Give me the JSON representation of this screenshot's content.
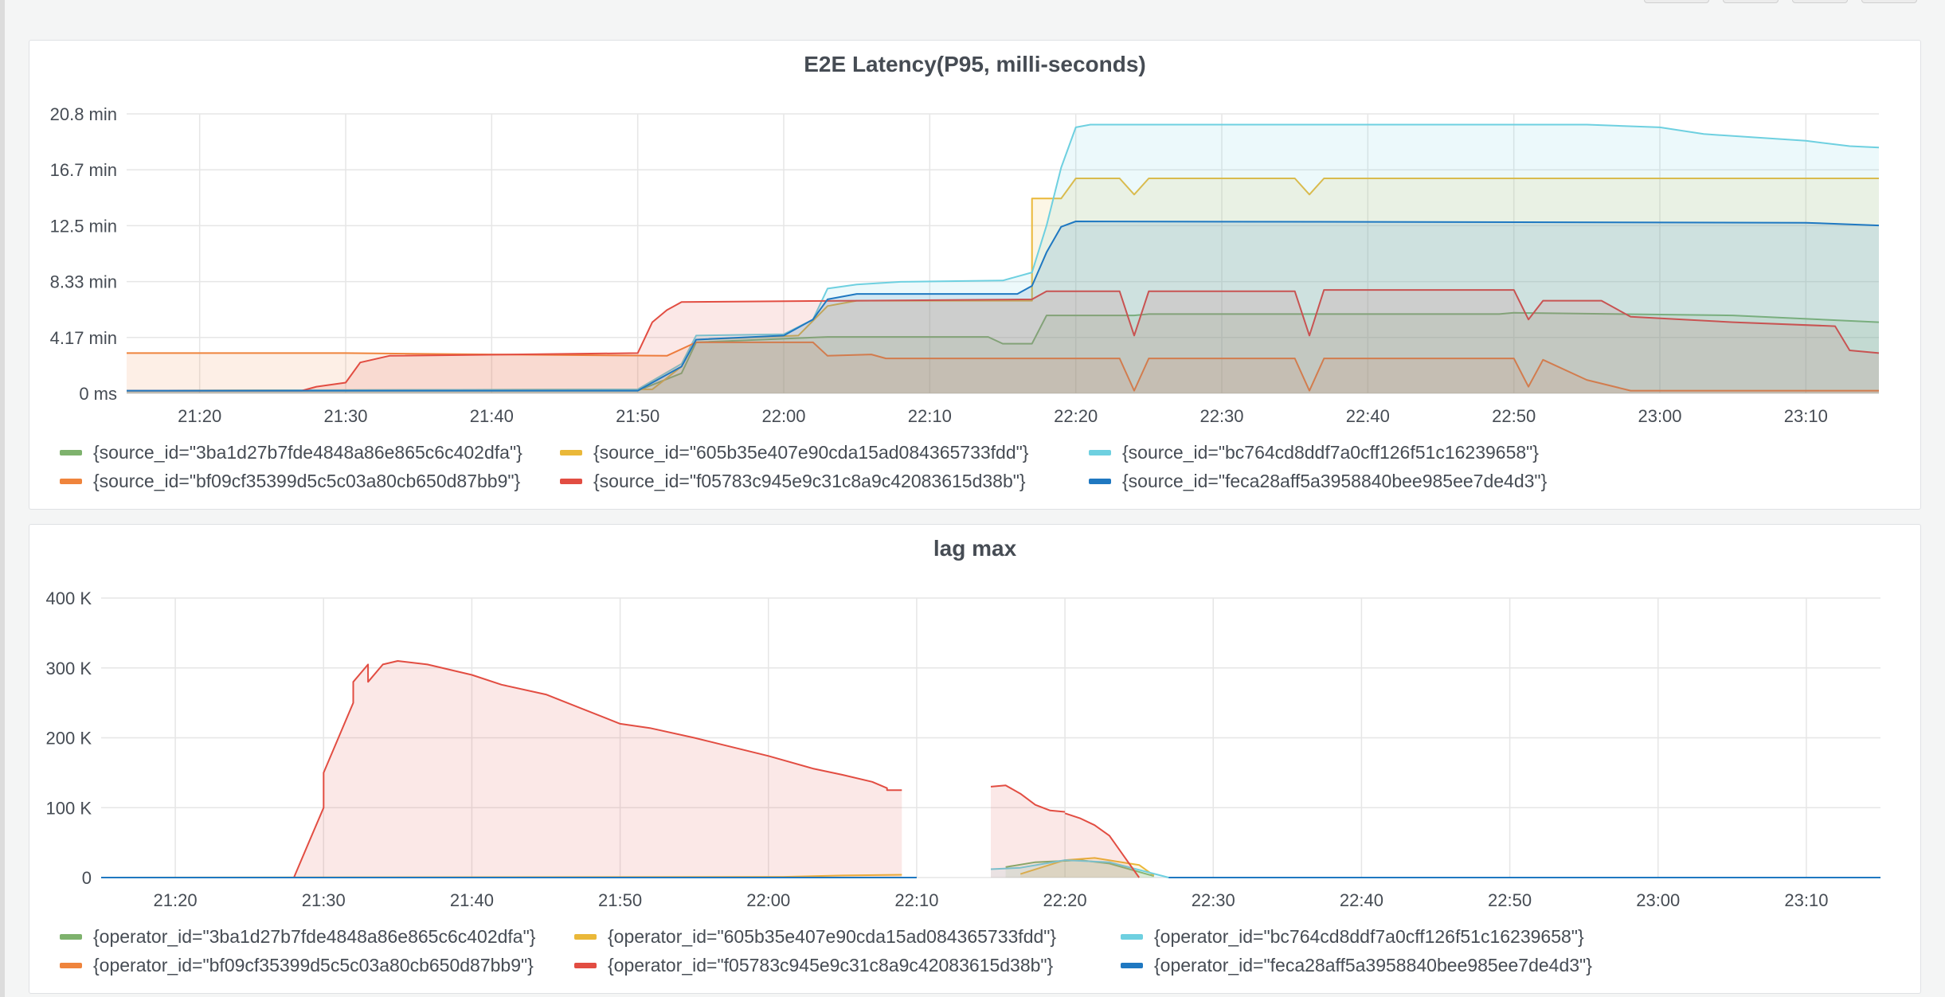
{
  "colors": {
    "green": "#7eb26d",
    "yellow": "#eab839",
    "cyan": "#6ed0e0",
    "orange": "#ef843c",
    "red": "#e24d42",
    "blue": "#1f78c1"
  },
  "panels": {
    "latency": {
      "title": "E2E Latency(P95, milli-seconds)",
      "legend": [
        {
          "label": "{source_id=\"3ba1d27b7fde4848a86e865c6c402dfa\"}",
          "color": "#7eb26d"
        },
        {
          "label": "{source_id=\"605b35e407e90cda15ad084365733fdd\"}",
          "color": "#eab839"
        },
        {
          "label": "{source_id=\"bc764cd8ddf7a0cff126f51c16239658\"}",
          "color": "#6ed0e0"
        },
        {
          "label": "{source_id=\"bf09cf35399d5c5c03a80cb650d87bb9\"}",
          "color": "#ef843c"
        },
        {
          "label": "{source_id=\"f05783c945e9c31c8a9c42083615d38b\"}",
          "color": "#e24d42"
        },
        {
          "label": "{source_id=\"feca28aff5a3958840bee985ee7de4d3\"}",
          "color": "#1f78c1"
        }
      ]
    },
    "lag": {
      "title": "lag max",
      "legend": [
        {
          "label": "{operator_id=\"3ba1d27b7fde4848a86e865c6c402dfa\"}",
          "color": "#7eb26d"
        },
        {
          "label": "{operator_id=\"605b35e407e90cda15ad084365733fdd\"}",
          "color": "#eab839"
        },
        {
          "label": "{operator_id=\"bc764cd8ddf7a0cff126f51c16239658\"}",
          "color": "#6ed0e0"
        },
        {
          "label": "{operator_id=\"bf09cf35399d5c5c03a80cb650d87bb9\"}",
          "color": "#ef843c"
        },
        {
          "label": "{operator_id=\"f05783c945e9c31c8a9c42083615d38b\"}",
          "color": "#e24d42"
        },
        {
          "label": "{operator_id=\"feca28aff5a3958840bee985ee7de4d3\"}",
          "color": "#1f78c1"
        }
      ]
    }
  },
  "chart_data": [
    {
      "type": "area",
      "title": "E2E Latency(P95, milli-seconds)",
      "x_ticks": [
        "21:20",
        "21:30",
        "21:40",
        "21:50",
        "22:00",
        "22:10",
        "22:20",
        "22:30",
        "22:40",
        "22:50",
        "23:00",
        "23:10"
      ],
      "y_ticks": [
        "0 ms",
        "4.17 min",
        "8.33 min",
        "12.5 min",
        "16.7 min",
        "20.8 min"
      ],
      "y_unit": "min",
      "ylim": [
        0,
        20.8
      ],
      "xlim": [
        "21:15",
        "23:15"
      ],
      "grid": true,
      "legend_placement": "bottom",
      "series": [
        {
          "name": "{source_id=\"3ba1d27b7fde4848a86e865c6c402dfa\"}",
          "color": "#7eb26d",
          "points": [
            [
              "21:15",
              0.2
            ],
            [
              "21:50",
              0.2
            ],
            [
              "21:53",
              1.5
            ],
            [
              "21:54",
              3.8
            ],
            [
              "22:03",
              4.2
            ],
            [
              "22:14",
              4.2
            ],
            [
              "22:15",
              3.7
            ],
            [
              "22:17",
              3.7
            ],
            [
              "22:18",
              5.8
            ],
            [
              "22:24",
              5.8
            ],
            [
              "22:25",
              5.9
            ],
            [
              "22:49",
              5.9
            ],
            [
              "22:50",
              6.0
            ],
            [
              "23:05",
              5.8
            ],
            [
              "23:15",
              5.3
            ]
          ]
        },
        {
          "name": "{source_id=\"605b35e407e90cda15ad084365733fdd\"}",
          "color": "#eab839",
          "points": [
            [
              "21:15",
              0.2
            ],
            [
              "21:51",
              0.3
            ],
            [
              "21:53",
              2.0
            ],
            [
              "21:54",
              4.0
            ],
            [
              "22:01",
              4.3
            ],
            [
              "22:03",
              6.5
            ],
            [
              "22:05",
              6.9
            ],
            [
              "22:17",
              6.9
            ],
            [
              "22:17",
              14.5
            ],
            [
              "22:19",
              14.5
            ],
            [
              "22:20",
              16.0
            ],
            [
              "22:23",
              16.0
            ],
            [
              "22:24",
              14.8
            ],
            [
              "22:25",
              16.0
            ],
            [
              "22:35",
              16.0
            ],
            [
              "22:36",
              14.8
            ],
            [
              "22:37",
              16.0
            ],
            [
              "23:15",
              16.0
            ]
          ]
        },
        {
          "name": "{source_id=\"bc764cd8ddf7a0cff126f51c16239658\"}",
          "color": "#6ed0e0",
          "points": [
            [
              "21:15",
              0.2
            ],
            [
              "21:50",
              0.3
            ],
            [
              "21:53",
              2.2
            ],
            [
              "21:54",
              4.3
            ],
            [
              "22:00",
              4.4
            ],
            [
              "22:02",
              5.5
            ],
            [
              "22:03",
              7.8
            ],
            [
              "22:05",
              8.1
            ],
            [
              "22:08",
              8.3
            ],
            [
              "22:15",
              8.4
            ],
            [
              "22:17",
              9.0
            ],
            [
              "22:18",
              12.5
            ],
            [
              "22:19",
              16.8
            ],
            [
              "22:20",
              19.8
            ],
            [
              "22:21",
              20.0
            ],
            [
              "22:55",
              20.0
            ],
            [
              "23:00",
              19.8
            ],
            [
              "23:03",
              19.3
            ],
            [
              "23:10",
              18.8
            ],
            [
              "23:13",
              18.4
            ],
            [
              "23:15",
              18.3
            ]
          ]
        },
        {
          "name": "{source_id=\"bf09cf35399d5c5c03a80cb650d87bb9\"}",
          "color": "#ef843c",
          "points": [
            [
              "21:15",
              3.0
            ],
            [
              "21:30",
              3.0
            ],
            [
              "21:40",
              2.9
            ],
            [
              "21:52",
              2.8
            ],
            [
              "21:54",
              3.8
            ],
            [
              "22:02",
              3.8
            ],
            [
              "22:03",
              2.8
            ],
            [
              "22:06",
              2.9
            ],
            [
              "22:07",
              2.6
            ],
            [
              "22:23",
              2.6
            ],
            [
              "22:24",
              0.2
            ],
            [
              "22:25",
              2.6
            ],
            [
              "22:35",
              2.6
            ],
            [
              "22:36",
              0.2
            ],
            [
              "22:37",
              2.6
            ],
            [
              "22:50",
              2.6
            ],
            [
              "22:51",
              0.5
            ],
            [
              "22:52",
              2.5
            ],
            [
              "22:55",
              1.0
            ],
            [
              "22:58",
              0.2
            ],
            [
              "23:15",
              0.2
            ]
          ]
        },
        {
          "name": "{source_id=\"f05783c945e9c31c8a9c42083615d38b\"}",
          "color": "#e24d42",
          "points": [
            [
              "21:15",
              0.2
            ],
            [
              "21:27",
              0.2
            ],
            [
              "21:28",
              0.5
            ],
            [
              "21:30",
              0.8
            ],
            [
              "21:31",
              2.3
            ],
            [
              "21:33",
              2.8
            ],
            [
              "21:50",
              3.0
            ],
            [
              "21:51",
              5.3
            ],
            [
              "21:52",
              6.2
            ],
            [
              "21:53",
              6.8
            ],
            [
              "22:05",
              6.9
            ],
            [
              "22:17",
              7.0
            ],
            [
              "22:18",
              7.6
            ],
            [
              "22:23",
              7.6
            ],
            [
              "22:24",
              4.3
            ],
            [
              "22:25",
              7.6
            ],
            [
              "22:35",
              7.6
            ],
            [
              "22:36",
              4.3
            ],
            [
              "22:37",
              7.7
            ],
            [
              "22:50",
              7.7
            ],
            [
              "22:51",
              5.5
            ],
            [
              "22:52",
              6.9
            ],
            [
              "22:56",
              6.9
            ],
            [
              "22:58",
              5.7
            ],
            [
              "23:05",
              5.3
            ],
            [
              "23:12",
              5.0
            ],
            [
              "23:13",
              3.2
            ],
            [
              "23:15",
              3.0
            ]
          ]
        },
        {
          "name": "{source_id=\"feca28aff5a3958840bee985ee7de4d3\"}",
          "color": "#1f78c1",
          "points": [
            [
              "21:15",
              0.2
            ],
            [
              "21:50",
              0.2
            ],
            [
              "21:53",
              2.0
            ],
            [
              "21:54",
              4.0
            ],
            [
              "22:00",
              4.3
            ],
            [
              "22:02",
              5.5
            ],
            [
              "22:03",
              7.0
            ],
            [
              "22:05",
              7.4
            ],
            [
              "22:16",
              7.4
            ],
            [
              "22:17",
              8.0
            ],
            [
              "22:18",
              10.5
            ],
            [
              "22:19",
              12.4
            ],
            [
              "22:20",
              12.8
            ],
            [
              "23:10",
              12.7
            ],
            [
              "23:15",
              12.5
            ]
          ]
        }
      ]
    },
    {
      "type": "area",
      "title": "lag max",
      "x_ticks": [
        "21:20",
        "21:30",
        "21:40",
        "21:50",
        "22:00",
        "22:10",
        "22:20",
        "22:30",
        "22:40",
        "22:50",
        "23:00",
        "23:10"
      ],
      "y_ticks": [
        "0",
        "100 K",
        "200 K",
        "300 K",
        "400 K"
      ],
      "ylim": [
        0,
        400000
      ],
      "xlim": [
        "21:15",
        "23:15"
      ],
      "grid": true,
      "legend_placement": "bottom",
      "series": [
        {
          "name": "{operator_id=\"3ba1d27b7fde4848a86e865c6c402dfa\"}",
          "color": "#7eb26d",
          "segments": [
            [
              [
                "22:16",
                15000
              ],
              [
                "22:18",
                22000
              ],
              [
                "22:21",
                25000
              ],
              [
                "22:23",
                20000
              ],
              [
                "22:26",
                2000
              ]
            ]
          ]
        },
        {
          "name": "{operator_id=\"605b35e407e90cda15ad084365733fdd\"}",
          "color": "#eab839",
          "segments": [
            [
              [
                "21:15",
                0
              ],
              [
                "22:01",
                1000
              ],
              [
                "22:05",
                3000
              ],
              [
                "22:09",
                4000
              ]
            ],
            [
              [
                "22:17",
                5000
              ],
              [
                "22:20",
                25000
              ],
              [
                "22:22",
                28000
              ],
              [
                "22:25",
                18000
              ],
              [
                "22:26",
                3000
              ]
            ]
          ]
        },
        {
          "name": "{operator_id=\"bc764cd8ddf7a0cff126f51c16239658\"}",
          "color": "#6ed0e0",
          "segments": [
            [
              [
                "21:15",
                0
              ],
              [
                "22:10",
                0
              ]
            ],
            [
              [
                "22:15",
                12000
              ],
              [
                "22:17",
                14000
              ],
              [
                "22:20",
                25000
              ],
              [
                "22:23",
                22000
              ],
              [
                "22:27",
                0
              ],
              [
                "23:15",
                0
              ]
            ]
          ]
        },
        {
          "name": "{operator_id=\"bf09cf35399d5c5c03a80cb650d87bb9\"}",
          "color": "#ef843c",
          "segments": []
        },
        {
          "name": "{operator_id=\"f05783c945e9c31c8a9c42083615d38b\"}",
          "color": "#e24d42",
          "segments": [
            [
              [
                "21:28",
                0
              ],
              [
                "21:29",
                50000
              ],
              [
                "21:30",
                100000
              ],
              [
                "21:30",
                150000
              ],
              [
                "21:31",
                200000
              ],
              [
                "21:32",
                250000
              ],
              [
                "21:32",
                280000
              ],
              [
                "21:33",
                305000
              ],
              [
                "21:33",
                280000
              ],
              [
                "21:34",
                305000
              ],
              [
                "21:35",
                310000
              ],
              [
                "21:37",
                305000
              ],
              [
                "21:40",
                290000
              ],
              [
                "21:42",
                276000
              ],
              [
                "21:45",
                262000
              ],
              [
                "21:50",
                220000
              ],
              [
                "21:52",
                214000
              ],
              [
                "21:55",
                200000
              ],
              [
                "22:00",
                174000
              ],
              [
                "22:01",
                168000
              ],
              [
                "22:03",
                156000
              ],
              [
                "22:05",
                147000
              ],
              [
                "22:07",
                137000
              ],
              [
                "22:08",
                128000
              ],
              [
                "22:08",
                125000
              ],
              [
                "22:09",
                125000
              ]
            ],
            [
              [
                "22:15",
                130000
              ],
              [
                "22:16",
                132000
              ],
              [
                "22:17",
                120000
              ],
              [
                "22:18",
                104000
              ],
              [
                "22:19",
                96000
              ],
              [
                "22:20",
                94000
              ]
            ],
            [
              [
                "22:20",
                92000
              ],
              [
                "22:21",
                85000
              ],
              [
                "22:22",
                75000
              ],
              [
                "22:23",
                60000
              ],
              [
                "22:24",
                30000
              ],
              [
                "22:25",
                0
              ]
            ]
          ]
        },
        {
          "name": "{operator_id=\"feca28aff5a3958840bee985ee7de4d3\"}",
          "color": "#1f78c1",
          "segments": [
            [
              [
                "21:15",
                0
              ],
              [
                "22:10",
                0
              ]
            ],
            [
              [
                "22:27",
                0
              ],
              [
                "23:15",
                0
              ]
            ]
          ]
        }
      ]
    }
  ]
}
